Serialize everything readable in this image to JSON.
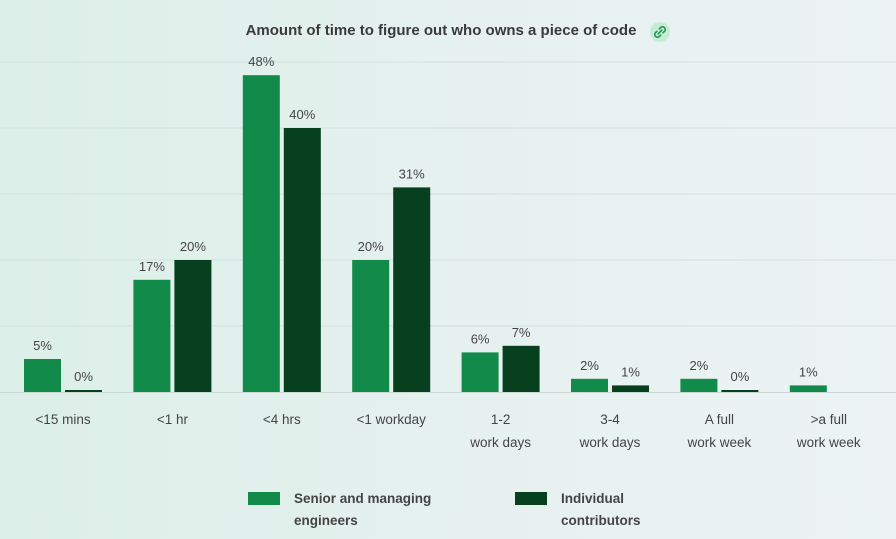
{
  "chart_data": {
    "type": "bar",
    "title": "Amount of time to figure out who owns a piece of code",
    "categories": [
      [
        "<15 mins"
      ],
      [
        "<1 hr"
      ],
      [
        "<4 hrs"
      ],
      [
        "<1 workday"
      ],
      [
        "1-2",
        "work days"
      ],
      [
        "3-4",
        "work days"
      ],
      [
        "A full",
        "work week"
      ],
      [
        ">a full",
        "work week"
      ]
    ],
    "series": [
      {
        "name": "Senior and managing engineers",
        "legend_lines": [
          "Senior and managing",
          "engineers"
        ],
        "color": "#128a4a",
        "values": [
          5,
          17,
          48,
          20,
          6,
          2,
          2,
          1
        ],
        "labels": [
          "5%",
          "17%",
          "48%",
          "20%",
          "6%",
          "2%",
          "2%",
          "1%"
        ]
      },
      {
        "name": "Individual contributors",
        "legend_lines": [
          "Individual",
          "contributors"
        ],
        "color": "#06401f",
        "values": [
          0,
          20,
          40,
          31,
          7,
          1,
          0,
          null
        ],
        "labels": [
          "0%",
          "20%",
          "40%",
          "31%",
          "7%",
          "1%",
          "0%",
          null
        ]
      }
    ],
    "ylim": [
      0,
      50
    ],
    "grid": true,
    "legend_position": "bottom"
  },
  "icons": {
    "title_icon": "link-icon"
  }
}
